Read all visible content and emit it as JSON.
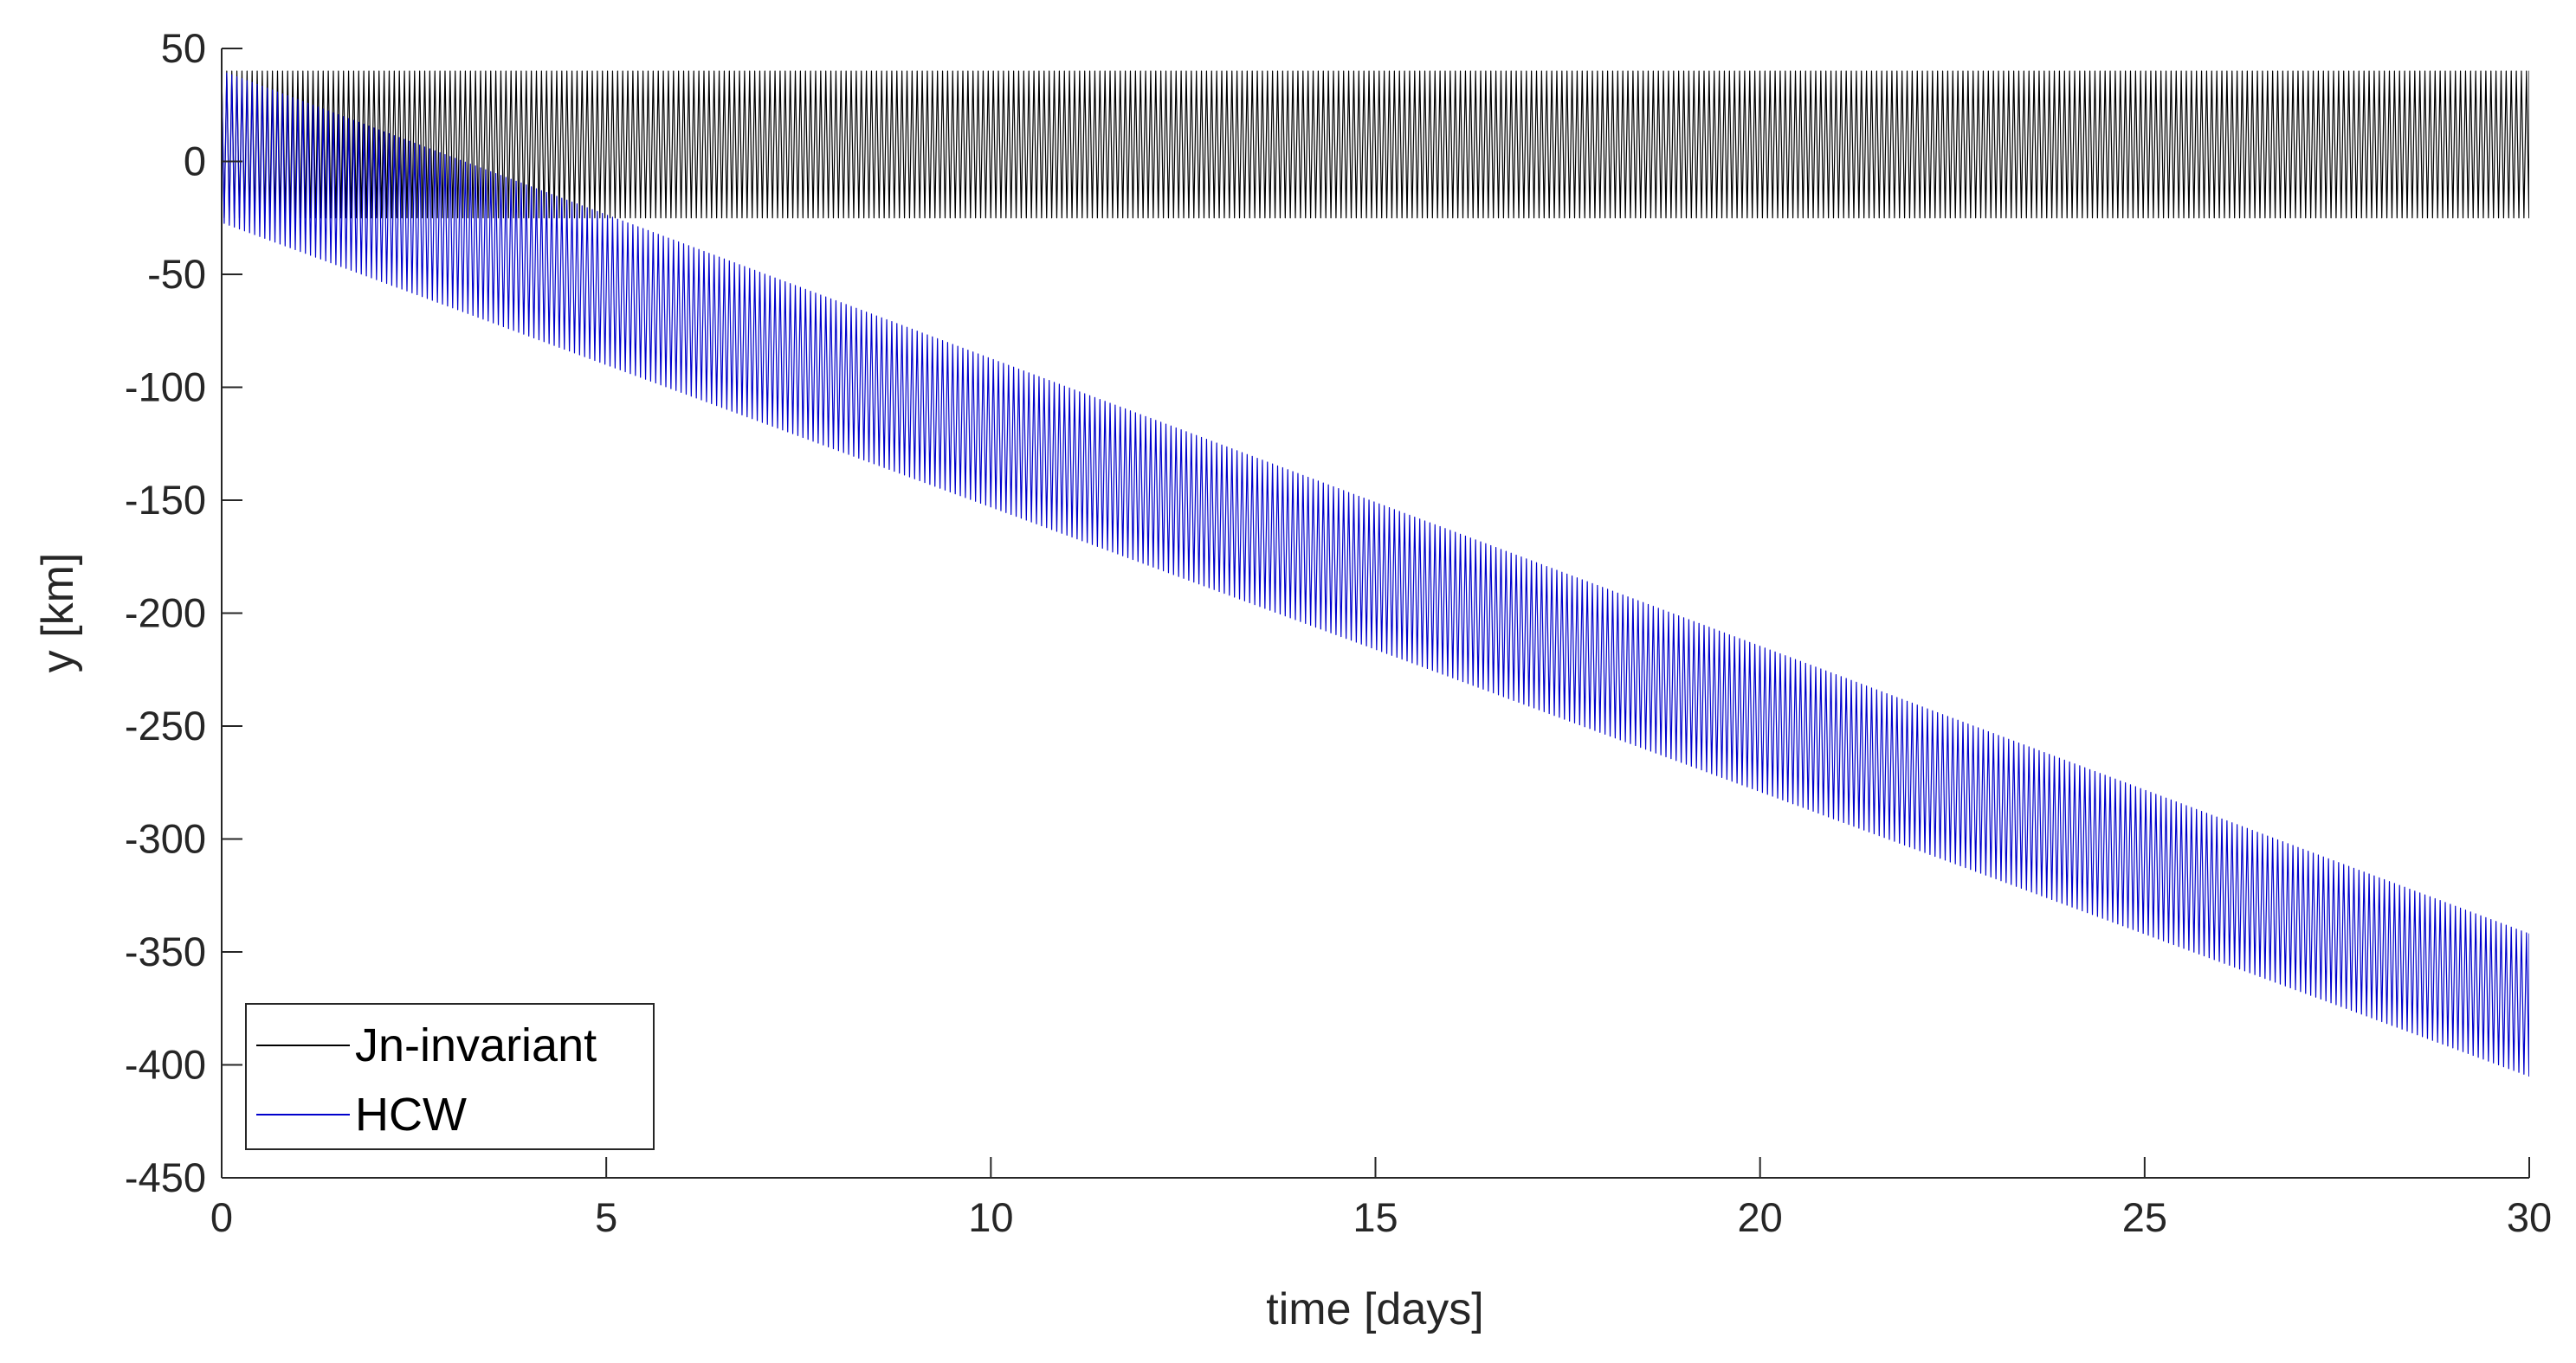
{
  "chart_data": {
    "type": "line",
    "xlabel": "time [days]",
    "ylabel": "y [km]",
    "xlim": [
      0,
      30
    ],
    "ylim": [
      -450,
      50
    ],
    "xticks": [
      0,
      5,
      10,
      15,
      20,
      25,
      30
    ],
    "yticks": [
      50,
      0,
      -50,
      -100,
      -150,
      -200,
      -250,
      -300,
      -350,
      -400,
      -450
    ],
    "grid": false,
    "legend": {
      "position": "bottom-left"
    },
    "series": [
      {
        "name": "Jn-invariant",
        "color": "#000000",
        "oscillation_period_days": 0.066,
        "x": [
          0,
          30
        ],
        "upper": [
          40,
          40
        ],
        "lower": [
          -25,
          -25
        ]
      },
      {
        "name": "HCW",
        "color": "#0000cc",
        "oscillation_period_days": 0.066,
        "x": [
          0,
          30
        ],
        "upper": [
          40,
          -342
        ],
        "lower": [
          -27,
          -405
        ]
      }
    ]
  }
}
